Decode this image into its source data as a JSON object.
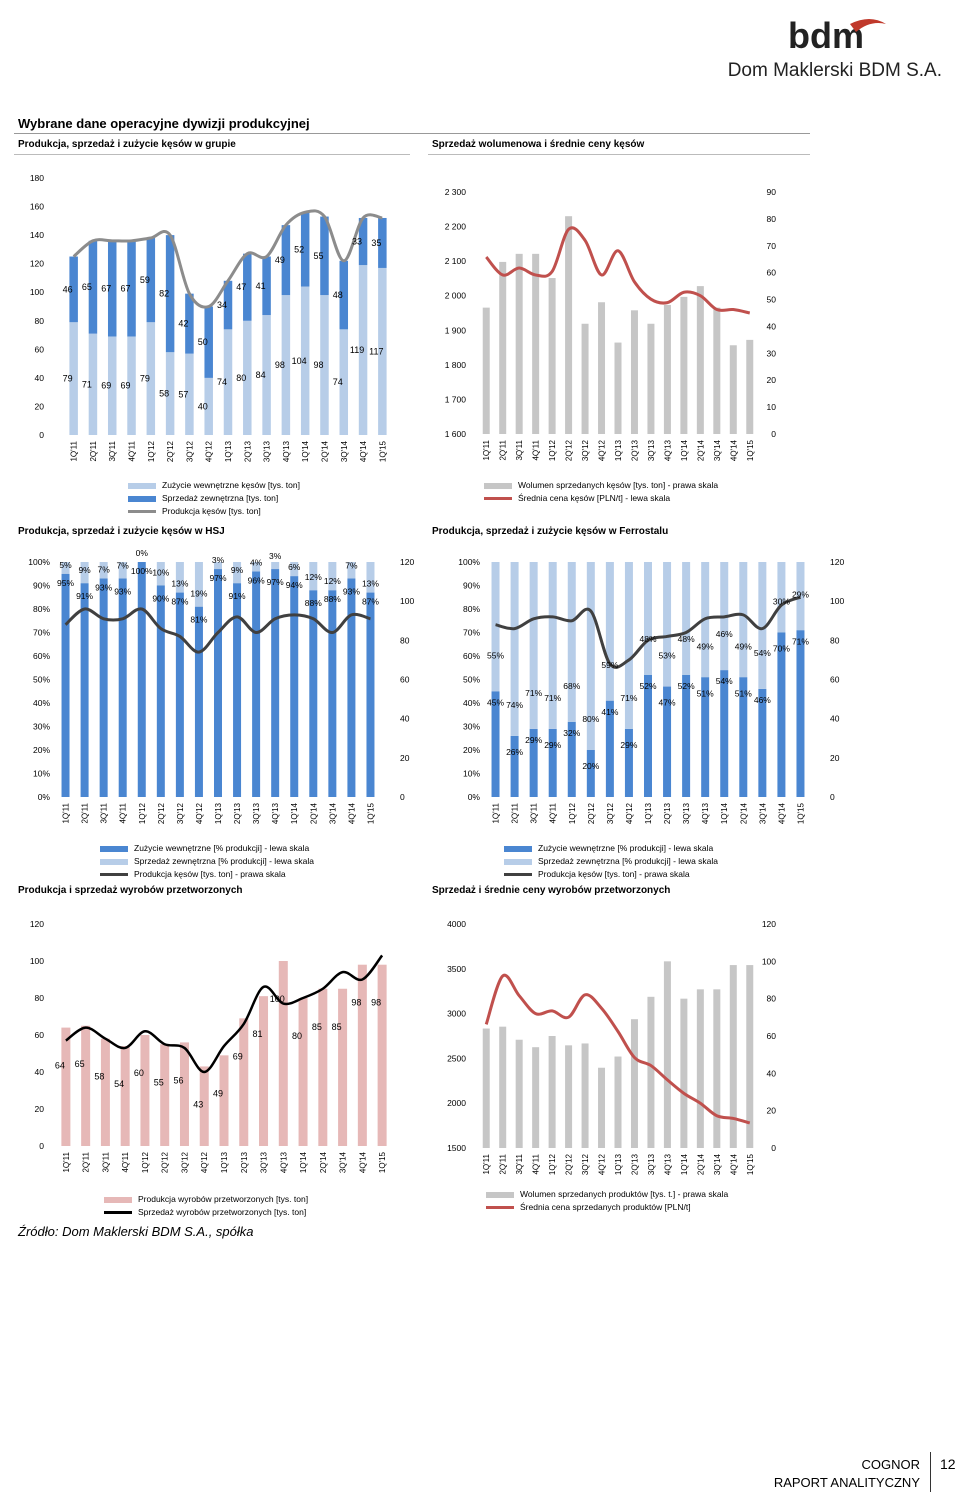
{
  "header": {
    "brand_name": "Dom Maklerski BDM S.A.",
    "logo_text": "bdm",
    "section_title": "Wybrane dane operacyjne dywizji produkcyjnej"
  },
  "colors": {
    "blue_dark": "#4a86d1",
    "blue_light": "#b7cde8",
    "grey_line": "#8c8c8c",
    "grey_bar": "#c6c6c6",
    "red_line": "#c0504d",
    "pink_bar": "#e6b8b7",
    "dark_line": "#404040",
    "black_line": "#000000",
    "logo_red": "#c0392b"
  },
  "charts": [
    {
      "id": "group",
      "title": "Produkcja, sprzedaż i zużycie kęsów w grupie",
      "legend": [
        {
          "label": "Zużycie wewnętrzne kęsów [tys. ton]",
          "kind": "bar",
          "color": "#b7cde8"
        },
        {
          "label": "Sprzedaż  zewnętrzna [tys. ton]",
          "kind": "bar",
          "color": "#4a86d1"
        },
        {
          "label": "Produkcja kęsów [tys. ton]",
          "kind": "line",
          "color": "#8c8c8c"
        }
      ]
    },
    {
      "id": "volume",
      "title": "Sprzedaż wolumenowa i średnie ceny kęsów",
      "legend": [
        {
          "label": "Wolumen sprzedanych kęsów [tys. ton] - prawa skala",
          "kind": "bar",
          "color": "#c6c6c6"
        },
        {
          "label": "Średnia cena kęsów [PLN/t] - lewa skala",
          "kind": "line",
          "color": "#c0504d"
        }
      ]
    },
    {
      "id": "hsj",
      "title": "Produkcja, sprzedaż i zużycie kęsów w HSJ",
      "legend": [
        {
          "label": "Zużycie wewnętrzne [% produkcji] - lewa skala",
          "kind": "bar",
          "color": "#4a86d1"
        },
        {
          "label": "Sprzedaż zewnętrzna [% produkcji] - lewa skala",
          "kind": "bar",
          "color": "#b7cde8"
        },
        {
          "label": "Produkcja kęsów [tys. ton] - prawa skala",
          "kind": "line",
          "color": "#404040"
        }
      ]
    },
    {
      "id": "ferro",
      "title": "Produkcja, sprzedaż i zużycie kęsów w Ferrostalu",
      "legend": [
        {
          "label": "Zużycie wewnętrzne [% produkcji] - lewa skala",
          "kind": "bar",
          "color": "#4a86d1"
        },
        {
          "label": "Sprzedaż zewnętrzna [% produkcji] - lewa skala",
          "kind": "bar",
          "color": "#b7cde8"
        },
        {
          "label": "Produkcja kęsów [tys. ton] - prawa skala",
          "kind": "line",
          "color": "#404040"
        }
      ]
    },
    {
      "id": "processed",
      "title": "Produkcja i sprzedaż wyrobów przetworzonych",
      "legend": [
        {
          "label": "Produkcja wyrobów przetworzonych [tys. ton]",
          "kind": "bar",
          "color": "#e6b8b7"
        },
        {
          "label": "Sprzedaż wyrobów przetworzonych [tys. ton]",
          "kind": "line",
          "color": "#000000"
        }
      ]
    },
    {
      "id": "processed_sales",
      "title": "Sprzedaż i średnie ceny wyrobów przetworzonych",
      "legend": [
        {
          "label": "Wolumen sprzedanych produktów [tys. t.] - prawa skala",
          "kind": "bar",
          "color": "#c6c6c6"
        },
        {
          "label": "Średnia cena sprzedanych produktów [PLN/t]",
          "kind": "line",
          "color": "#c0504d"
        }
      ]
    }
  ],
  "chart_data": [
    {
      "id": "group",
      "type": "bar",
      "stacked": true,
      "categories": [
        "1Q'11",
        "2Q'11",
        "3Q'11",
        "4Q'11",
        "1Q'12",
        "2Q'12",
        "3Q'12",
        "4Q'12",
        "1Q'13",
        "2Q'13",
        "3Q'13",
        "4Q'13",
        "1Q'14",
        "2Q'14",
        "3Q'14",
        "4Q'14",
        "1Q'15"
      ],
      "series": [
        {
          "name": "Zużycie wewnętrzne kęsów [tys. ton]",
          "values": [
            79,
            71,
            69,
            69,
            79,
            58,
            57,
            40,
            74,
            80,
            84,
            98,
            104,
            98,
            74,
            119,
            117
          ]
        },
        {
          "name": "Sprzedaż  zewnętrzna [tys. ton]",
          "values": [
            46,
            65,
            67,
            67,
            59,
            82,
            42,
            50,
            34,
            47,
            41,
            49,
            52,
            55,
            48,
            33,
            35
          ]
        },
        {
          "name": "Produkcja kęsów [tys. ton]",
          "type": "line",
          "values": [
            125,
            136,
            136,
            136,
            138,
            140,
            99,
            90,
            108,
            127,
            125,
            147,
            156,
            153,
            122,
            152,
            152
          ]
        }
      ],
      "ylim": [
        0,
        180
      ],
      "yticks": [
        0,
        20,
        40,
        60,
        80,
        100,
        120,
        140,
        160,
        180
      ]
    },
    {
      "id": "volume",
      "type": "bar",
      "categories": [
        "1Q'11",
        "2Q'11",
        "3Q'11",
        "4Q'11",
        "1Q'12",
        "2Q'12",
        "3Q'12",
        "4Q'12",
        "1Q'13",
        "2Q'13",
        "3Q'13",
        "4Q'13",
        "1Q'14",
        "2Q'14",
        "3Q'14",
        "4Q'14",
        "1Q'15"
      ],
      "series": [
        {
          "name": "Wolumen sprzedanych kęsów [tys. ton] - prawa skala",
          "axis": "right",
          "values": [
            47,
            64,
            67,
            67,
            58,
            81,
            41,
            49,
            34,
            46,
            41,
            48,
            51,
            55,
            47,
            33,
            35
          ]
        },
        {
          "name": "Średnia cena kęsów [PLN/t] - lewa skala",
          "axis": "left",
          "type": "line",
          "values": [
            2112,
            2060,
            2080,
            2060,
            2070,
            2192,
            2160,
            2060,
            2130,
            2040,
            1990,
            1980,
            2010,
            2000,
            1960,
            1960,
            1950
          ]
        }
      ],
      "ylim_left": [
        1600,
        2300
      ],
      "yticks_left": [
        "1 600",
        "1 700",
        "1 800",
        "1 900",
        "2 000",
        "2 100",
        "2 200",
        "2 300"
      ],
      "ylim_right": [
        0,
        90
      ],
      "yticks_right": [
        0,
        10,
        20,
        30,
        40,
        50,
        60,
        70,
        80,
        90
      ]
    },
    {
      "id": "hsj",
      "type": "bar",
      "stacked": true,
      "categories": [
        "1Q'11",
        "2Q'11",
        "3Q'11",
        "4Q'11",
        "1Q'12",
        "2Q'12",
        "3Q'12",
        "4Q'12",
        "1Q'13",
        "2Q'13",
        "3Q'13",
        "4Q'13",
        "1Q'14",
        "2Q'14",
        "3Q'14",
        "4Q'14",
        "1Q'15"
      ],
      "series": [
        {
          "name": "Zużycie wewnętrzne [% produkcji] - lewa skala",
          "values": [
            95,
            91,
            93,
            93,
            100,
            90,
            87,
            81,
            97,
            91,
            96,
            97,
            94,
            88,
            88,
            93,
            87
          ]
        },
        {
          "name": "Sprzedaż zewnętrzna [% produkcji] - lewa skala",
          "values": [
            5,
            9,
            7,
            7,
            0,
            10,
            13,
            19,
            3,
            9,
            4,
            3,
            6,
            12,
            12,
            7,
            13
          ]
        },
        {
          "name": "Produkcja kęsów [tys. ton] - prawa skala",
          "axis": "right",
          "type": "line",
          "values": [
            88,
            96,
            91,
            91,
            96,
            86,
            82,
            74,
            84,
            92,
            84,
            91,
            93,
            91,
            84,
            93,
            91
          ]
        }
      ],
      "top_labels": [
        "5%",
        "9%",
        "7%",
        "7%",
        "0%",
        "10%",
        "13%",
        "19%",
        "3%",
        "9%",
        "4%",
        "3%",
        "6%",
        "12%",
        "12%",
        "7%",
        "13%"
      ],
      "bottom_labels": [
        "95%",
        "91%",
        "93%",
        "93%",
        "100%",
        "90%",
        "87%",
        "81%",
        "97%",
        "91%",
        "96%",
        "97%",
        "94%",
        "88%",
        "88%",
        "93%",
        "87%"
      ],
      "ylim_left": [
        0,
        100
      ],
      "yticks_left": [
        "0%",
        "10%",
        "20%",
        "30%",
        "40%",
        "50%",
        "60%",
        "70%",
        "80%",
        "90%",
        "100%"
      ],
      "ylim_right": [
        0,
        120
      ],
      "yticks_right": [
        0,
        20,
        40,
        60,
        80,
        100,
        120
      ]
    },
    {
      "id": "ferro",
      "type": "bar",
      "stacked": true,
      "categories": [
        "1Q'11",
        "2Q'11",
        "3Q'11",
        "4Q'11",
        "1Q'12",
        "2Q'12",
        "3Q'12",
        "4Q'12",
        "1Q'13",
        "2Q'13",
        "3Q'13",
        "4Q'13",
        "1Q'14",
        "2Q'14",
        "3Q'14",
        "4Q'14",
        "1Q'15"
      ],
      "series": [
        {
          "name": "Zużycie wewnętrzne [% produkcji] - lewa skala",
          "values": [
            45,
            26,
            29,
            29,
            32,
            20,
            41,
            29,
            52,
            47,
            52,
            51,
            54,
            51,
            46,
            70,
            71
          ]
        },
        {
          "name": "Sprzedaż zewnętrzna [% produkcji] - lewa skala",
          "values": [
            55,
            74,
            71,
            71,
            68,
            80,
            59,
            71,
            48,
            53,
            48,
            49,
            46,
            49,
            54,
            30,
            29
          ]
        },
        {
          "name": "Produkcja kęsów [tys. ton] - prawa skala",
          "axis": "right",
          "type": "line",
          "values": [
            88,
            86,
            91,
            92,
            90,
            95,
            68,
            70,
            80,
            82,
            84,
            91,
            92,
            93,
            86,
            98,
            102
          ]
        }
      ],
      "upper_labels": [
        "55%",
        "74%",
        "71%",
        "71%",
        "68%",
        "80%",
        "59%",
        "71%",
        "48%",
        "53%",
        "48%",
        "49%",
        "46%",
        "49%",
        "54%",
        "30%",
        "29%"
      ],
      "lower_labels": [
        "45%",
        "26%",
        "29%",
        "29%",
        "32%",
        "20%",
        "41%",
        "29%",
        "52%",
        "47%",
        "52%",
        "51%",
        "54%",
        "51%",
        "46%",
        "70%",
        "71%"
      ],
      "ylim_left": [
        0,
        100
      ],
      "yticks_left": [
        "0%",
        "10%",
        "20%",
        "30%",
        "40%",
        "50%",
        "60%",
        "70%",
        "80%",
        "90%",
        "100%"
      ],
      "ylim_right": [
        0,
        120
      ],
      "yticks_right": [
        0,
        20,
        40,
        60,
        80,
        100,
        120
      ]
    },
    {
      "id": "processed",
      "type": "bar",
      "categories": [
        "1Q'11",
        "2Q'11",
        "3Q'11",
        "4Q'11",
        "1Q'12",
        "2Q'12",
        "3Q'12",
        "4Q'12",
        "1Q'13",
        "2Q'13",
        "3Q'13",
        "4Q'13",
        "1Q'14",
        "2Q'14",
        "3Q'14",
        "4Q'14",
        "1Q'15"
      ],
      "series": [
        {
          "name": "Produkcja wyrobów przetworzonych [tys. ton]",
          "values": [
            64,
            65,
            58,
            54,
            60,
            55,
            56,
            43,
            49,
            69,
            81,
            100,
            80,
            85,
            85,
            98,
            98
          ]
        },
        {
          "name": "Sprzedaż wyrobów przetworzonych [tys. ton]",
          "type": "line",
          "values": [
            57,
            64,
            58,
            53,
            62,
            55,
            53,
            40,
            54,
            66,
            86,
            77,
            80,
            85,
            94,
            90,
            103
          ]
        }
      ],
      "ylim": [
        0,
        120
      ],
      "yticks": [
        0,
        20,
        40,
        60,
        80,
        100,
        120
      ]
    },
    {
      "id": "processed_sales",
      "type": "bar",
      "categories": [
        "1Q'11",
        "2Q'11",
        "3Q'11",
        "4Q'11",
        "1Q'12",
        "2Q'12",
        "3Q'12",
        "4Q'12",
        "1Q'13",
        "2Q'13",
        "3Q'13",
        "4Q'13",
        "1Q'14",
        "2Q'14",
        "3Q'14",
        "4Q'14",
        "1Q'15"
      ],
      "series": [
        {
          "name": "Wolumen sprzedanych produktów [tys. t.] - prawa skala",
          "axis": "right",
          "values": [
            64,
            65,
            58,
            54,
            60,
            55,
            56,
            43,
            49,
            69,
            81,
            100,
            80,
            85,
            85,
            98,
            98
          ]
        },
        {
          "name": "Średnia cena sprzedanych produktów [PLN/t]",
          "axis": "left",
          "type": "line",
          "values": [
            2880,
            3420,
            3200,
            3000,
            3030,
            2960,
            3210,
            3060,
            2800,
            2510,
            2420,
            2260,
            2110,
            2000,
            1860,
            1830,
            1780
          ]
        }
      ],
      "ylim_left": [
        1500,
        4000
      ],
      "yticks_left": [
        1500,
        2000,
        2500,
        3000,
        3500,
        4000
      ],
      "ylim_right": [
        0,
        120
      ],
      "yticks_right": [
        0,
        20,
        40,
        60,
        80,
        100,
        120
      ]
    }
  ],
  "footer": {
    "source": "Źródło: Dom Maklerski BDM S.A., spółka",
    "company": "COGNOR",
    "report": "RAPORT ANALITYCZNY",
    "page_number": "12"
  }
}
